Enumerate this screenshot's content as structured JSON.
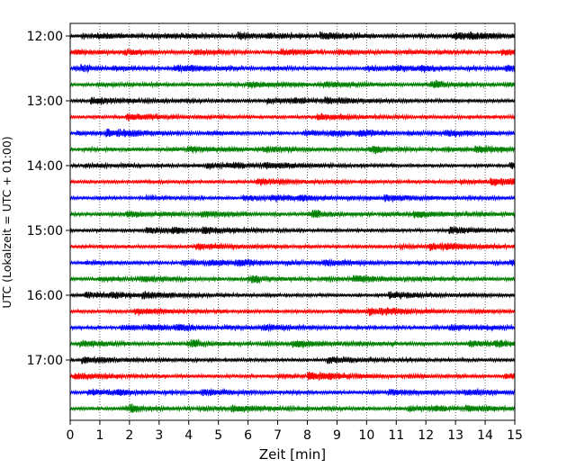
{
  "chart_data": {
    "type": "line",
    "title": "",
    "xlabel": "Zeit  [min]",
    "ylabel": "UTC (Lokalzeit = UTC + 01:00)",
    "xlim": [
      0,
      15
    ],
    "x_ticks": [
      "0",
      "1",
      "2",
      "3",
      "4",
      "5",
      "6",
      "7",
      "8",
      "9",
      "10",
      "11",
      "12",
      "13",
      "14",
      "15"
    ],
    "y_ticks": [
      {
        "label": "12:00",
        "minutes": 0
      },
      {
        "label": "13:00",
        "minutes": 60
      },
      {
        "label": "14:00",
        "minutes": 120
      },
      {
        "label": "15:00",
        "minutes": 180
      },
      {
        "label": "16:00",
        "minutes": 240
      },
      {
        "label": "17:00",
        "minutes": 300
      }
    ],
    "trace_interval_min": 15,
    "trace_start_minutes": [
      0,
      15,
      30,
      45,
      60,
      75,
      90,
      105,
      120,
      135,
      150,
      165,
      180,
      195,
      210,
      225,
      240,
      255,
      270,
      285,
      300,
      315,
      330,
      345
    ],
    "trace_colors": [
      "#000000",
      "#ff0000",
      "#0000ff",
      "#008000"
    ],
    "grid": "vertical dotted lines at every minute",
    "legend": "none"
  }
}
